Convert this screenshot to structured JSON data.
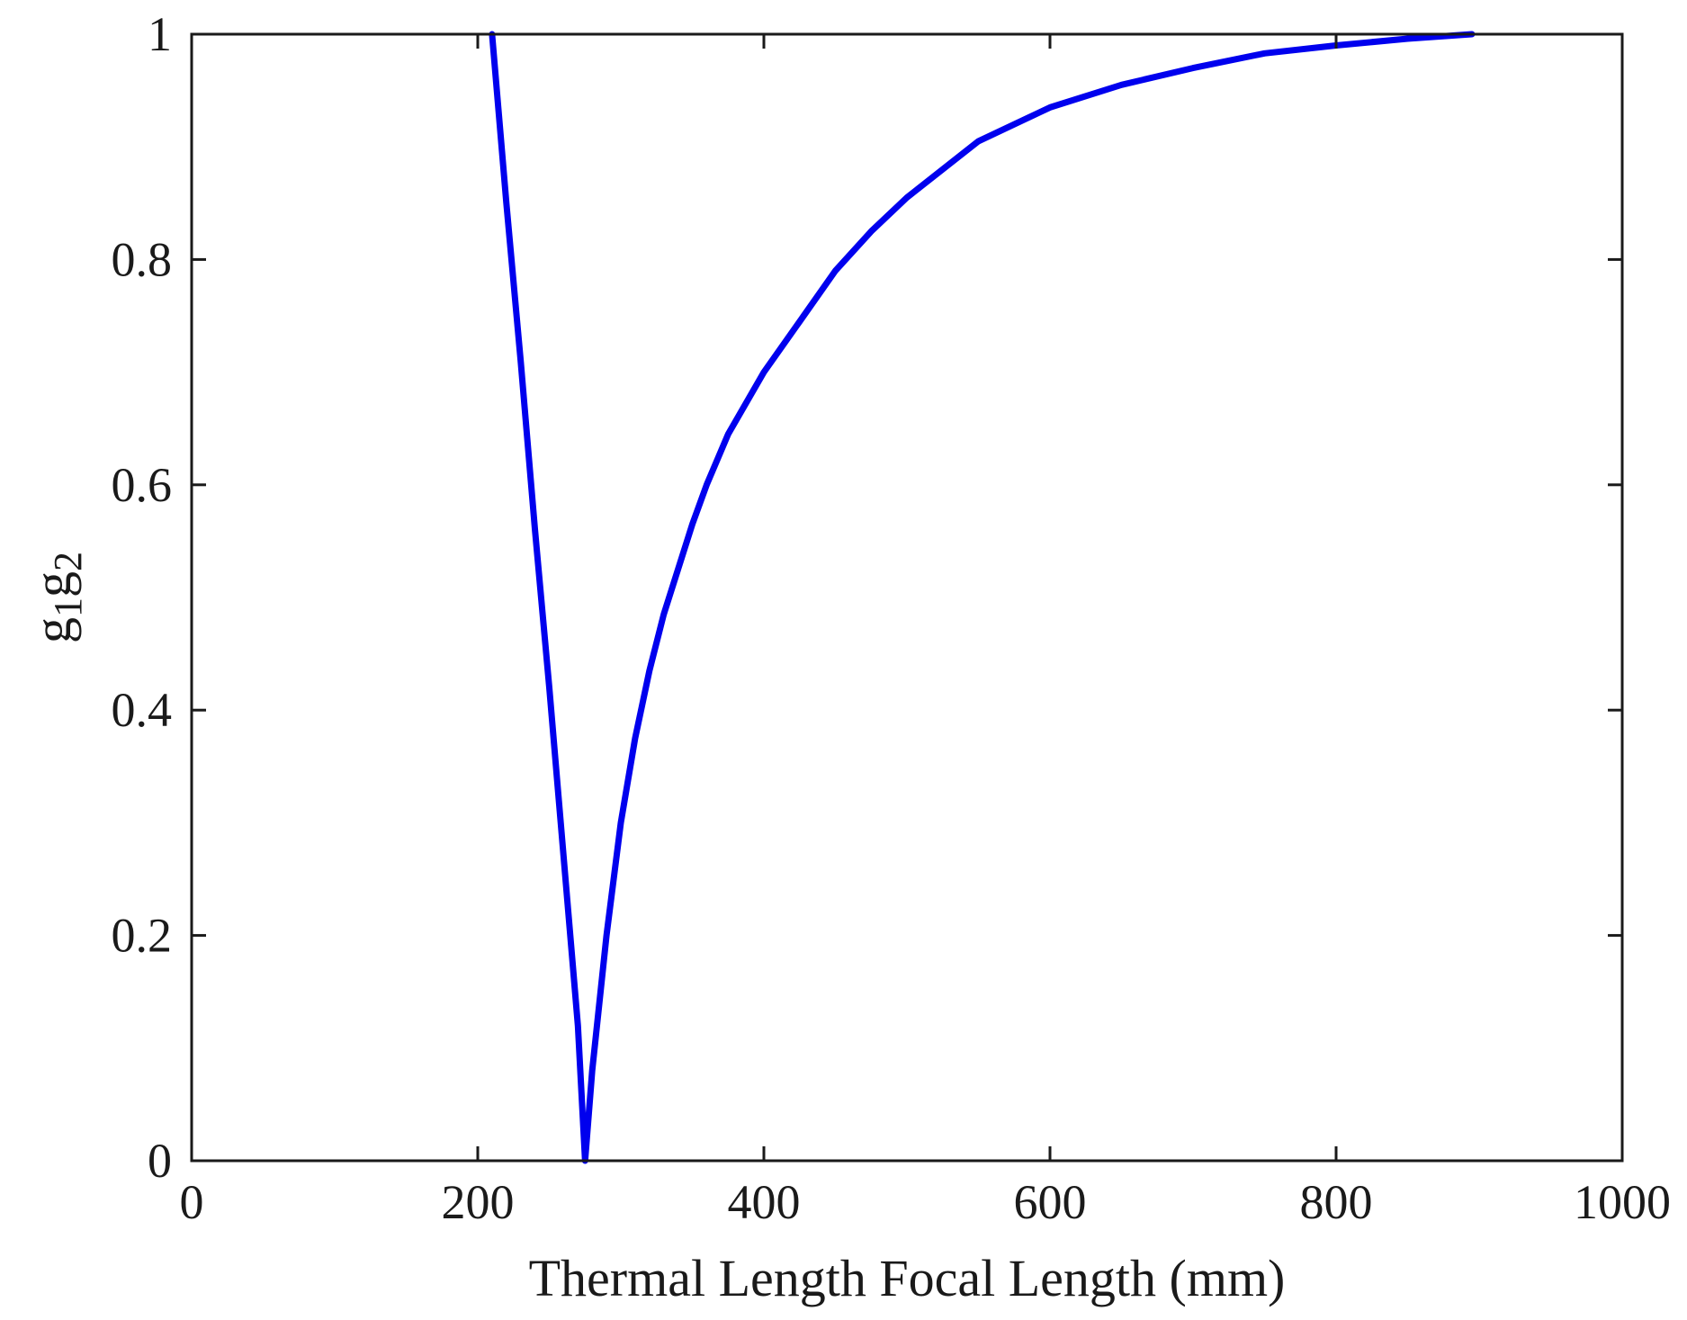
{
  "chart_data": {
    "type": "line",
    "title": "",
    "xlabel": "Thermal Length Focal Length (mm)",
    "ylabel": "g1g2",
    "ylabel_parts": {
      "main1": "g",
      "sub1": "1",
      "main2": "g",
      "sub2": "2"
    },
    "xlim": [
      0,
      1000
    ],
    "ylim": [
      0,
      1
    ],
    "xticks": [
      0,
      200,
      400,
      600,
      800,
      1000
    ],
    "yticks": [
      0,
      0.2,
      0.4,
      0.6,
      0.8,
      1
    ],
    "xtick_labels": [
      "0",
      "200",
      "400",
      "600",
      "800",
      "1000"
    ],
    "ytick_labels": [
      "0",
      "0.2",
      "0.4",
      "0.6",
      "0.8",
      "1"
    ],
    "grid": false,
    "box": true,
    "series": [
      {
        "color": "#0000ee",
        "x": [
          210,
          220,
          230,
          240,
          250,
          260,
          270,
          275,
          280,
          290,
          300,
          310,
          320,
          330,
          340,
          350,
          360,
          375,
          400,
          425,
          450,
          475,
          500,
          550,
          600,
          650,
          700,
          750,
          800,
          850,
          895
        ],
        "y": [
          1.0,
          0.85,
          0.71,
          0.56,
          0.42,
          0.27,
          0.12,
          0.0,
          0.08,
          0.2,
          0.3,
          0.375,
          0.435,
          0.485,
          0.525,
          0.565,
          0.6,
          0.645,
          0.7,
          0.745,
          0.79,
          0.825,
          0.855,
          0.905,
          0.935,
          0.955,
          0.97,
          0.983,
          0.99,
          0.996,
          1.0
        ]
      }
    ]
  }
}
